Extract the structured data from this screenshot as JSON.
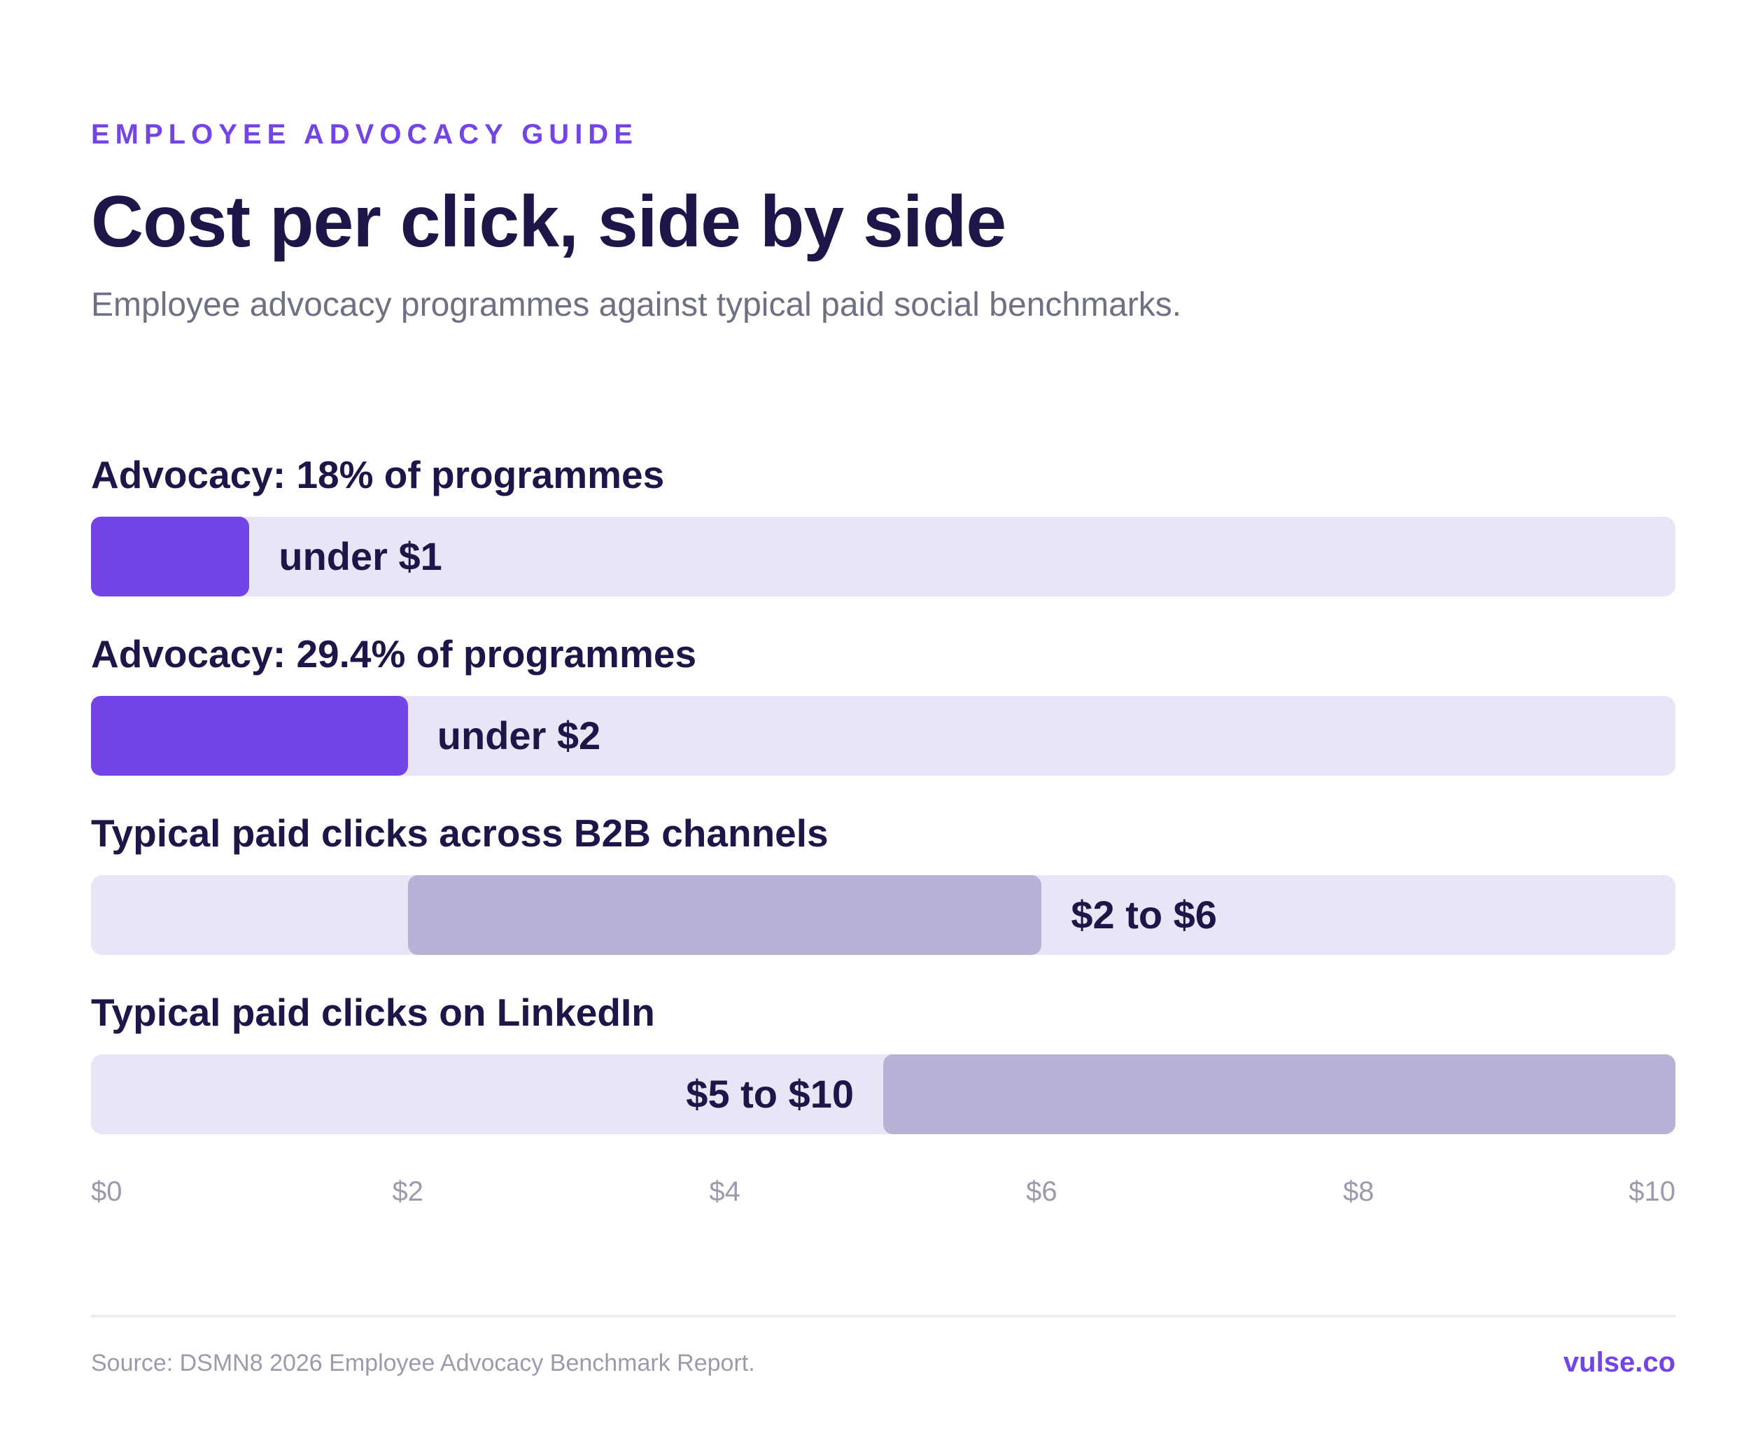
{
  "eyebrow": "EMPLOYEE ADVOCACY GUIDE",
  "title": "Cost per click, side by side",
  "subtitle": "Employee advocacy programmes against typical paid social benchmarks.",
  "colors": {
    "accent": "#7344e6",
    "advocacy_fill": "#7344e6",
    "paid_fill": "#b8b2d6",
    "track": "#e9e5f6",
    "text_dark": "#1c1748"
  },
  "chart_data": {
    "type": "bar",
    "orientation": "horizontal-range",
    "xlim": [
      0,
      10
    ],
    "x_unit": "$",
    "ticks": [
      "$0",
      "$2",
      "$4",
      "$6",
      "$8",
      "$10"
    ],
    "grid": false,
    "bars": [
      {
        "label": "Advocacy: 18% of programmes",
        "start": 0,
        "end": 1,
        "value_label": "under $1",
        "group": "advocacy"
      },
      {
        "label": "Advocacy: 29.4% of programmes",
        "start": 0,
        "end": 2,
        "value_label": "under $2",
        "group": "advocacy"
      },
      {
        "label": "Typical paid clicks across B2B channels",
        "start": 2,
        "end": 6,
        "value_label": "$2 to $6",
        "group": "paid"
      },
      {
        "label": "Typical paid clicks on LinkedIn",
        "start": 5,
        "end": 10,
        "value_label": "$5 to $10",
        "group": "paid"
      }
    ]
  },
  "footer": {
    "source": "Source: DSMN8 2026 Employee Advocacy Benchmark Report.",
    "brand": "vulse.co"
  }
}
